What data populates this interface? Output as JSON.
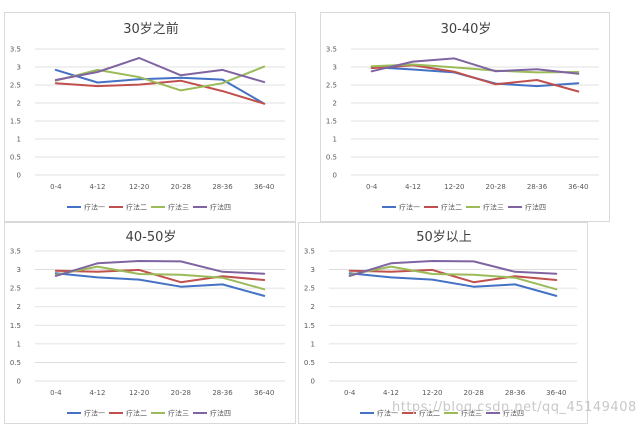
{
  "legend": [
    "疗法一",
    "疗法二",
    "疗法三",
    "疗法四"
  ],
  "colors": [
    "#4472c4",
    "#c0504d",
    "#9bbb59",
    "#8064a2"
  ],
  "watermark": "https://blog.csdn.net/qq_45149408",
  "chart_data": [
    {
      "type": "line",
      "title": "30岁之前",
      "categories": [
        "0-4",
        "4-12",
        "12-20",
        "20-28",
        "28-36",
        "36-40"
      ],
      "yticks": [
        "0",
        "0.5",
        "1",
        "1.5",
        "2",
        "2.5",
        "3",
        "3.5"
      ],
      "ylim": [
        0,
        3.5
      ],
      "series": [
        {
          "name": "疗法一",
          "values": [
            2.92,
            2.57,
            2.66,
            2.7,
            2.65,
            1.98
          ]
        },
        {
          "name": "疗法二",
          "values": [
            2.55,
            2.47,
            2.51,
            2.62,
            2.33,
            1.98
          ]
        },
        {
          "name": "疗法三",
          "values": [
            2.62,
            2.92,
            2.72,
            2.35,
            2.55,
            3.01
          ]
        },
        {
          "name": "疗法四",
          "values": [
            2.64,
            2.86,
            3.25,
            2.77,
            2.92,
            2.58
          ]
        }
      ]
    },
    {
      "type": "line",
      "title": "30-40岁",
      "categories": [
        "0-4",
        "4-12",
        "12-20",
        "20-28",
        "28-36",
        "36-40"
      ],
      "yticks": [
        "0",
        "0.5",
        "1",
        "1.5",
        "2",
        "2.5",
        "3",
        "3.5"
      ],
      "ylim": [
        0,
        3.5
      ],
      "series": [
        {
          "name": "疗法一",
          "values": [
            3.0,
            2.93,
            2.85,
            2.54,
            2.47,
            2.55
          ]
        },
        {
          "name": "疗法二",
          "values": [
            2.97,
            3.05,
            2.87,
            2.52,
            2.64,
            2.32
          ]
        },
        {
          "name": "疗法三",
          "values": [
            3.02,
            3.07,
            2.99,
            2.9,
            2.85,
            2.86
          ]
        },
        {
          "name": "疗法四",
          "values": [
            2.88,
            3.15,
            3.24,
            2.88,
            2.94,
            2.81
          ]
        }
      ]
    },
    {
      "type": "line",
      "title": "40-50岁",
      "categories": [
        "0-4",
        "4-12",
        "12-20",
        "20-28",
        "28-36",
        "36-40"
      ],
      "yticks": [
        "0",
        "0.5",
        "1",
        "1.5",
        "2",
        "2.5",
        "3",
        "3.5"
      ],
      "ylim": [
        0,
        3.5
      ],
      "series": [
        {
          "name": "疗法一",
          "values": [
            2.9,
            2.79,
            2.73,
            2.54,
            2.6,
            2.29
          ]
        },
        {
          "name": "疗法二",
          "values": [
            2.97,
            2.94,
            2.99,
            2.66,
            2.82,
            2.72
          ]
        },
        {
          "name": "疗法三",
          "values": [
            2.86,
            3.08,
            2.88,
            2.86,
            2.78,
            2.47
          ]
        },
        {
          "name": "疗法四",
          "values": [
            2.83,
            3.17,
            3.23,
            3.22,
            2.94,
            2.89
          ]
        }
      ]
    },
    {
      "type": "line",
      "title": "50岁以上",
      "categories": [
        "0-4",
        "4-12",
        "12-20",
        "20-28",
        "28-36",
        "36-40"
      ],
      "yticks": [
        "0",
        "0.5",
        "1",
        "1.5",
        "2",
        "2.5",
        "3",
        "3.5"
      ],
      "ylim": [
        0,
        3.5
      ],
      "series": [
        {
          "name": "疗法一",
          "values": [
            2.9,
            2.79,
            2.73,
            2.54,
            2.6,
            2.29
          ]
        },
        {
          "name": "疗法二",
          "values": [
            2.97,
            2.94,
            2.99,
            2.66,
            2.82,
            2.72
          ]
        },
        {
          "name": "疗法三",
          "values": [
            2.86,
            3.08,
            2.88,
            2.86,
            2.78,
            2.47
          ]
        },
        {
          "name": "疗法四",
          "values": [
            2.83,
            3.17,
            3.23,
            3.22,
            2.94,
            2.89
          ]
        }
      ]
    }
  ]
}
